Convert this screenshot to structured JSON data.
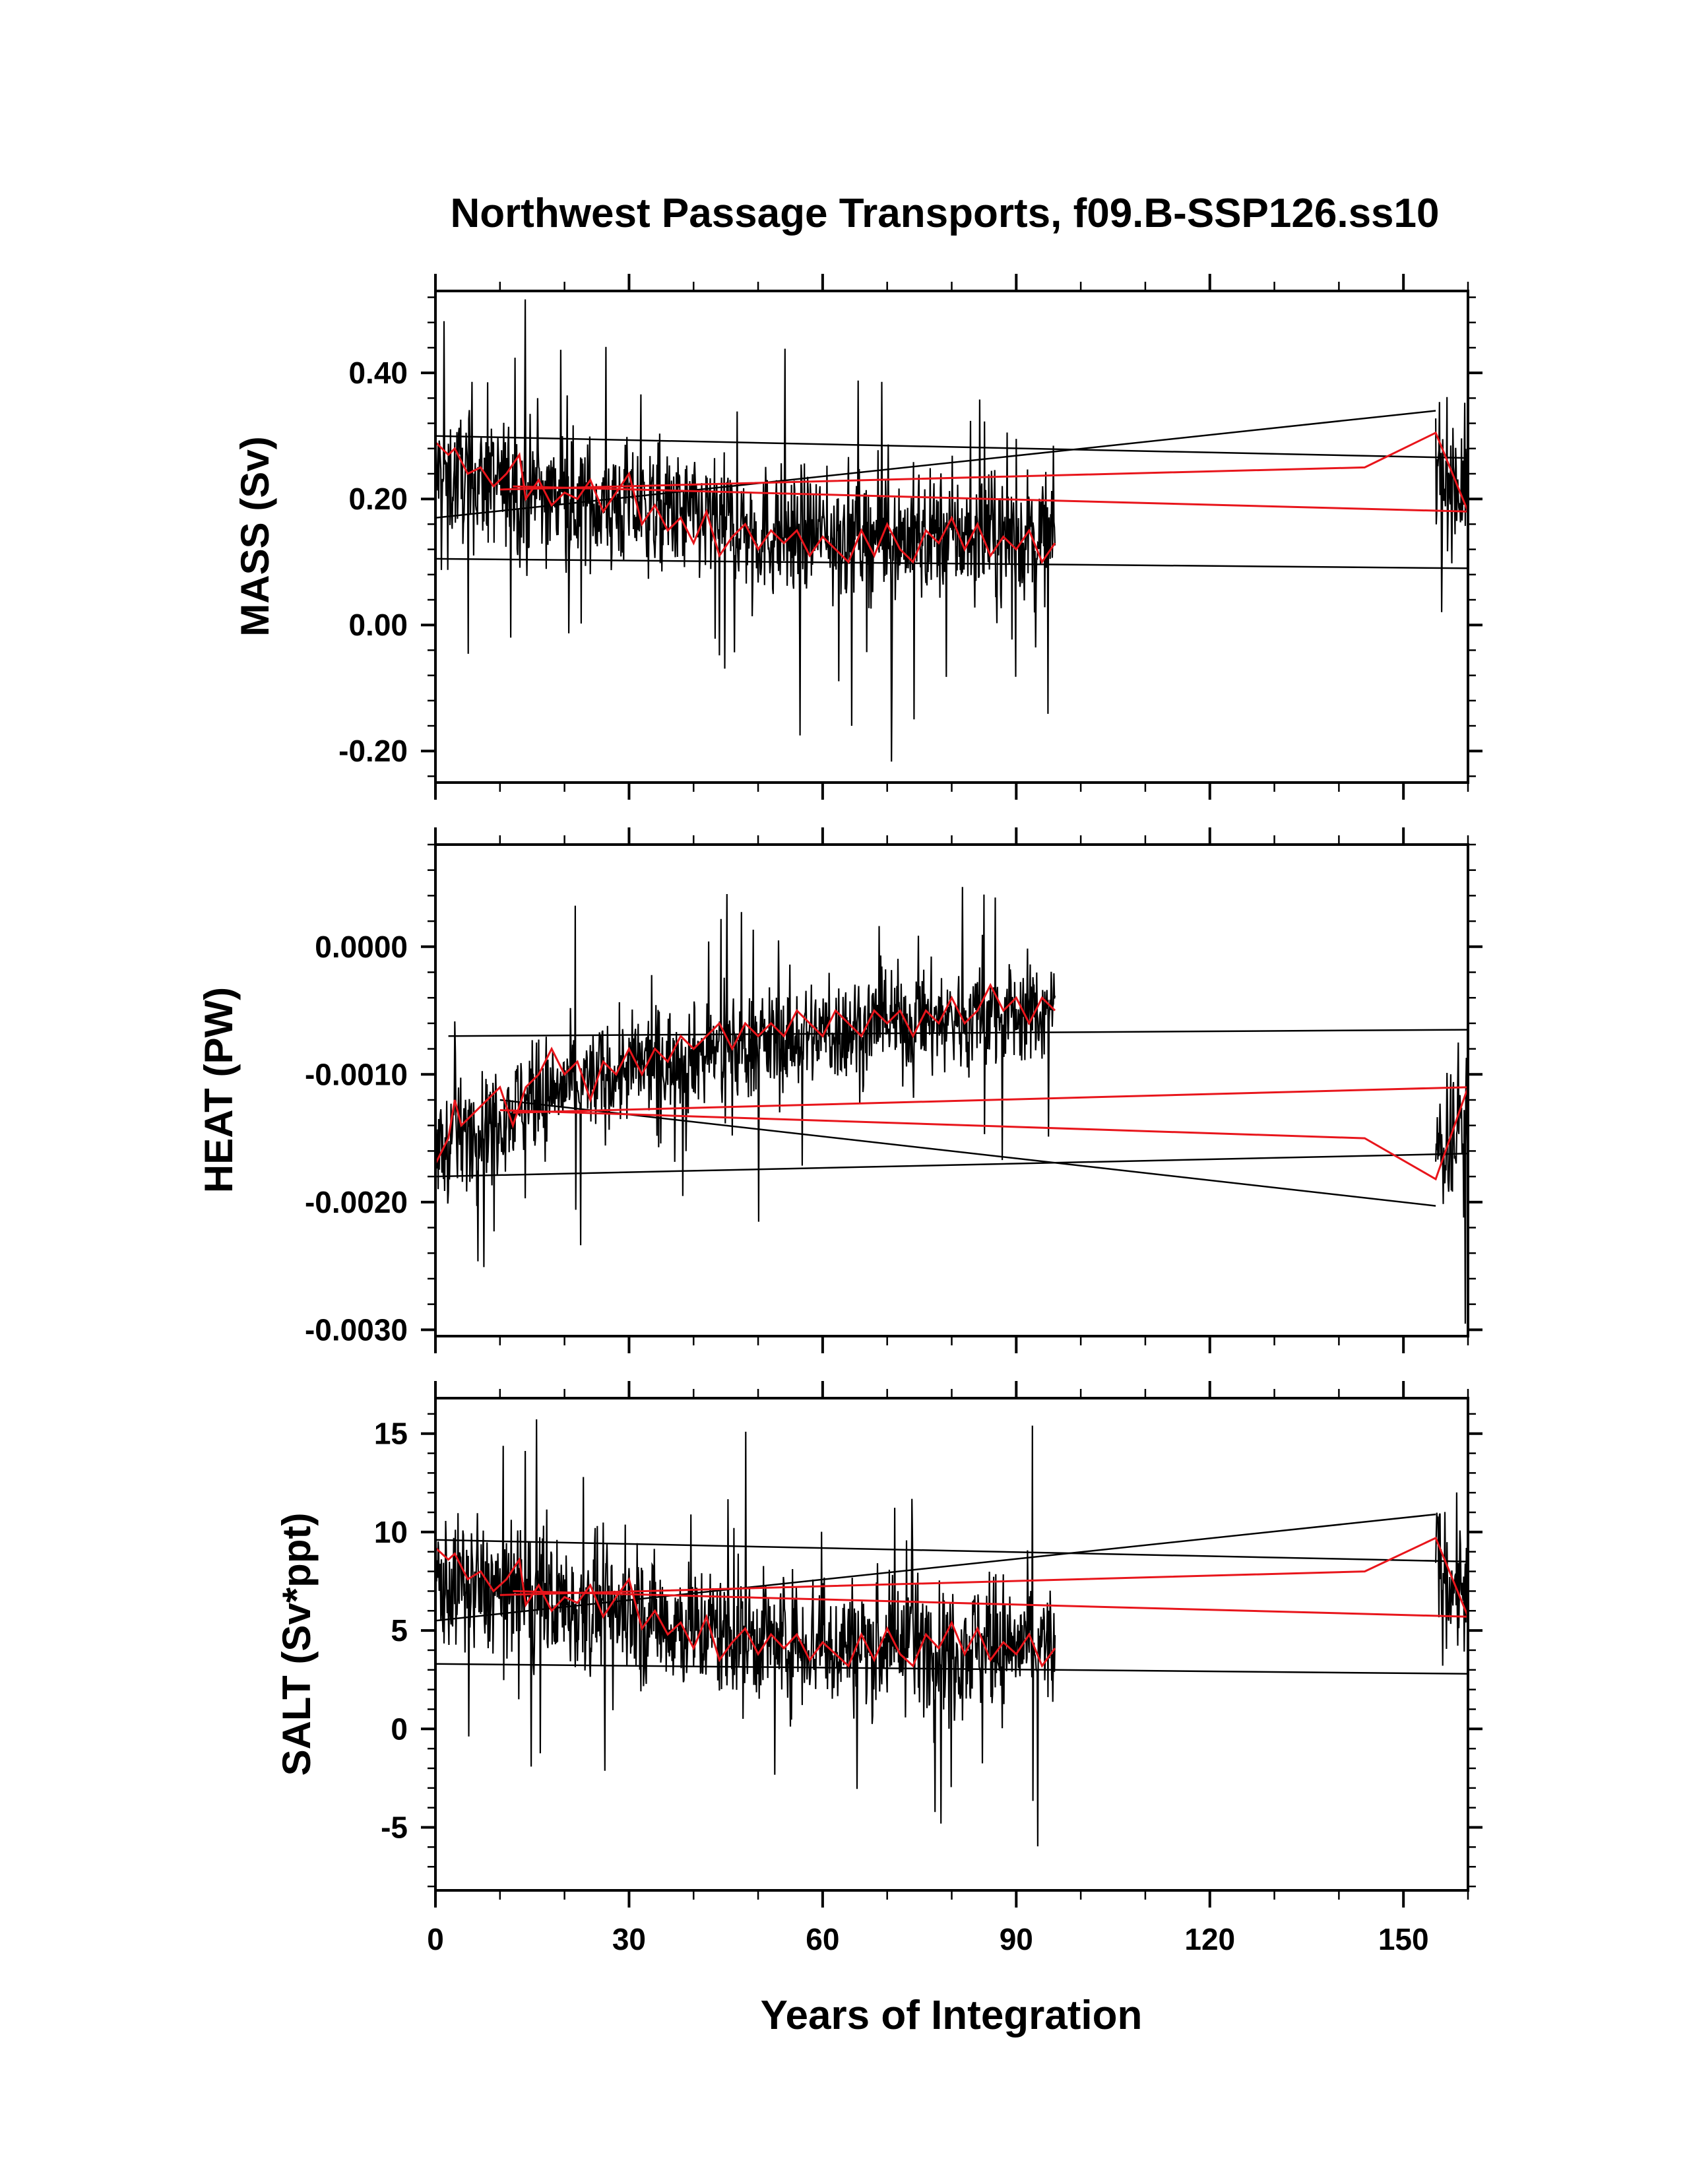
{
  "figure": {
    "title": "Northwest Passage Transports, f09.B-SSP126.ss10",
    "xlabel": "Years of Integration",
    "colors": {
      "raw": "#000000",
      "smoothed": "#e8151b",
      "axes": "#000000"
    }
  },
  "chart_data": [
    {
      "type": "line",
      "title": "Northwest Passage Transports, f09.B-SSP126.ss10",
      "ylabel": "MASS (Sv)",
      "xlabel": "",
      "xlim": [
        0,
        160
      ],
      "ylim": [
        -0.25,
        0.53
      ],
      "yticks": [
        -0.2,
        0.0,
        0.2,
        0.4
      ],
      "ytick_labels": [
        "-0.20",
        "0.00",
        "0.20",
        "0.40"
      ],
      "xticks": [
        0,
        30,
        60,
        90,
        120,
        150
      ],
      "grid": false,
      "legend": "none",
      "series": [
        {
          "role": "monthly",
          "color": "#000000",
          "segments": [
            {
              "x_start": 0,
              "x_end": 96,
              "level": [
                [
                  0,
                  0.24
                ],
                [
                  10,
                  0.22
                ],
                [
                  20,
                  0.2
                ],
                [
                  35,
                  0.18
                ],
                [
                  50,
                  0.15
                ],
                [
                  70,
                  0.14
                ],
                [
                  96,
                  0.14
                ]
              ],
              "amp": 0.11,
              "min": -0.25,
              "max": 0.53
            },
            {
              "x_start": 155,
              "x_end": 160,
              "level": [
                [
                  155,
                  0.25
                ],
                [
                  160,
                  0.22
                ]
              ],
              "amp": 0.12,
              "min": 0.02,
              "max": 0.52
            }
          ],
          "wrap_lines": [
            {
              "x": [
                0,
                160
              ],
              "y": [
                0.3,
                0.265
              ]
            },
            {
              "x": [
                0,
                155
              ],
              "y": [
                0.17,
                0.34
              ]
            },
            {
              "x": [
                0,
                160
              ],
              "y": [
                0.105,
                0.09
              ]
            }
          ]
        },
        {
          "role": "annual",
          "color": "#e8151b",
          "points": [
            [
              0,
              0.29
            ],
            [
              2,
              0.27
            ],
            [
              3,
              0.28
            ],
            [
              5,
              0.24
            ],
            [
              7,
              0.25
            ],
            [
              9,
              0.22
            ],
            [
              11,
              0.24
            ],
            [
              13,
              0.27
            ],
            [
              14,
              0.2
            ],
            [
              16,
              0.23
            ],
            [
              18,
              0.19
            ],
            [
              20,
              0.21
            ],
            [
              22,
              0.2
            ],
            [
              24,
              0.23
            ],
            [
              26,
              0.18
            ],
            [
              28,
              0.21
            ],
            [
              30,
              0.24
            ],
            [
              32,
              0.16
            ],
            [
              34,
              0.19
            ],
            [
              36,
              0.15
            ],
            [
              38,
              0.17
            ],
            [
              40,
              0.13
            ],
            [
              42,
              0.18
            ],
            [
              44,
              0.11
            ],
            [
              46,
              0.14
            ],
            [
              48,
              0.16
            ],
            [
              50,
              0.12
            ],
            [
              52,
              0.15
            ],
            [
              54,
              0.13
            ],
            [
              56,
              0.15
            ],
            [
              58,
              0.11
            ],
            [
              60,
              0.14
            ],
            [
              62,
              0.12
            ],
            [
              64,
              0.1
            ],
            [
              66,
              0.15
            ],
            [
              68,
              0.11
            ],
            [
              70,
              0.16
            ],
            [
              72,
              0.12
            ],
            [
              74,
              0.1
            ],
            [
              76,
              0.15
            ],
            [
              78,
              0.13
            ],
            [
              80,
              0.17
            ],
            [
              82,
              0.12
            ],
            [
              84,
              0.16
            ],
            [
              86,
              0.11
            ],
            [
              88,
              0.14
            ],
            [
              90,
              0.12
            ],
            [
              92,
              0.15
            ],
            [
              94,
              0.1
            ],
            [
              96,
              0.13
            ]
          ],
          "wrap_lines": [
            {
              "x": [
                10,
                144,
                155,
                160
              ],
              "y": [
                0.215,
                0.25,
                0.305,
                0.18
              ]
            },
            {
              "x": [
                12,
                160
              ],
              "y": [
                0.22,
                0.18
              ]
            }
          ]
        }
      ]
    },
    {
      "type": "line",
      "ylabel": "HEAT (PW)",
      "xlabel": "",
      "xlim": [
        0,
        160
      ],
      "ylim": [
        -0.00305,
        0.0008
      ],
      "yticks": [
        -0.003,
        -0.002,
        -0.001,
        0.0
      ],
      "ytick_labels": [
        "-0.0030",
        "-0.0020",
        "-0.0010",
        "0.0000"
      ],
      "xticks": [
        0,
        30,
        60,
        90,
        120,
        150
      ],
      "grid": false,
      "legend": "none",
      "series": [
        {
          "role": "monthly",
          "color": "#000000",
          "segments": [
            {
              "x_start": 0,
              "x_end": 96,
              "level": [
                [
                  0,
                  -0.0016
                ],
                [
                  10,
                  -0.0013
                ],
                [
                  20,
                  -0.0011
                ],
                [
                  35,
                  -0.0009
                ],
                [
                  50,
                  -0.00075
                ],
                [
                  70,
                  -0.0006
                ],
                [
                  96,
                  -0.0005
                ]
              ],
              "amp": 0.00045,
              "min": -0.00305,
              "max": 0.00078
            },
            {
              "x_start": 155,
              "x_end": 160,
              "level": [
                [
                  155,
                  -0.0016
                ],
                [
                  160,
                  -0.0013
                ]
              ],
              "amp": 0.0006,
              "min": -0.003,
              "max": -0.0004
            }
          ],
          "wrap_lines": [
            {
              "x": [
                0,
                160
              ],
              "y": [
                -0.0018,
                -0.00162
              ]
            },
            {
              "x": [
                10,
                155
              ],
              "y": [
                -0.0012,
                -0.00203
              ]
            },
            {
              "x": [
                2,
                160
              ],
              "y": [
                -0.0007,
                -0.00065
              ]
            }
          ]
        },
        {
          "role": "annual",
          "color": "#e8151b",
          "points": [
            [
              0,
              -0.0017
            ],
            [
              2,
              -0.0015
            ],
            [
              3,
              -0.0012
            ],
            [
              4,
              -0.0014
            ],
            [
              6,
              -0.0013
            ],
            [
              8,
              -0.0012
            ],
            [
              10,
              -0.0011
            ],
            [
              12,
              -0.0014
            ],
            [
              14,
              -0.0011
            ],
            [
              16,
              -0.001
            ],
            [
              18,
              -0.0008
            ],
            [
              20,
              -0.001
            ],
            [
              22,
              -0.0009
            ],
            [
              24,
              -0.0012
            ],
            [
              26,
              -0.0009
            ],
            [
              28,
              -0.001
            ],
            [
              30,
              -0.0008
            ],
            [
              32,
              -0.001
            ],
            [
              34,
              -0.0008
            ],
            [
              36,
              -0.0009
            ],
            [
              38,
              -0.0007
            ],
            [
              40,
              -0.0008
            ],
            [
              42,
              -0.0007
            ],
            [
              44,
              -0.0006
            ],
            [
              46,
              -0.0008
            ],
            [
              48,
              -0.0006
            ],
            [
              50,
              -0.0007
            ],
            [
              52,
              -0.0006
            ],
            [
              54,
              -0.0007
            ],
            [
              56,
              -0.0005
            ],
            [
              58,
              -0.0006
            ],
            [
              60,
              -0.0007
            ],
            [
              62,
              -0.0005
            ],
            [
              64,
              -0.0006
            ],
            [
              66,
              -0.0007
            ],
            [
              68,
              -0.0005
            ],
            [
              70,
              -0.0006
            ],
            [
              72,
              -0.0005
            ],
            [
              74,
              -0.0007
            ],
            [
              76,
              -0.0005
            ],
            [
              78,
              -0.0006
            ],
            [
              80,
              -0.0004
            ],
            [
              82,
              -0.0006
            ],
            [
              84,
              -0.0005
            ],
            [
              86,
              -0.0003
            ],
            [
              88,
              -0.0005
            ],
            [
              90,
              -0.0004
            ],
            [
              92,
              -0.0006
            ],
            [
              94,
              -0.0004
            ],
            [
              96,
              -0.0005
            ]
          ],
          "wrap_lines": [
            {
              "x": [
                10,
                144,
                155,
                160
              ],
              "y": [
                -0.00128,
                -0.0015,
                -0.00182,
                -0.0011
              ]
            },
            {
              "x": [
                12,
                160
              ],
              "y": [
                -0.0013,
                -0.0011
              ]
            }
          ]
        }
      ]
    },
    {
      "type": "line",
      "ylabel": "SALT (Sv*ppt)",
      "xlabel": "Years of Integration",
      "xlim": [
        0,
        160
      ],
      "ylim": [
        -8.2,
        16.8
      ],
      "yticks": [
        -5,
        0,
        5,
        10,
        15
      ],
      "ytick_labels": [
        "-5",
        "0",
        "5",
        "10",
        "15"
      ],
      "xticks": [
        0,
        30,
        60,
        90,
        120,
        150
      ],
      "xtick_labels": [
        "0",
        "30",
        "60",
        "90",
        "120",
        "150"
      ],
      "grid": false,
      "legend": "none",
      "series": [
        {
          "role": "monthly",
          "color": "#000000",
          "segments": [
            {
              "x_start": 0,
              "x_end": 96,
              "level": [
                [
                  0,
                  7.5
                ],
                [
                  10,
                  7.0
                ],
                [
                  20,
                  6.4
                ],
                [
                  35,
                  5.5
                ],
                [
                  50,
                  4.6
                ],
                [
                  70,
                  4.3
                ],
                [
                  96,
                  4.2
                ]
              ],
              "amp": 3.6,
              "min": -8.2,
              "max": 16.8
            },
            {
              "x_start": 155,
              "x_end": 160,
              "level": [
                [
                  155,
                  8.0
                ],
                [
                  160,
                  7.0
                ]
              ],
              "amp": 3.8,
              "min": 0.5,
              "max": 16.6
            }
          ],
          "wrap_lines": [
            {
              "x": [
                0,
                160
              ],
              "y": [
                9.6,
                8.5
              ]
            },
            {
              "x": [
                0,
                155
              ],
              "y": [
                5.5,
                10.9
              ]
            },
            {
              "x": [
                0,
                160
              ],
              "y": [
                3.3,
                2.8
              ]
            }
          ]
        },
        {
          "role": "annual",
          "color": "#e8151b",
          "points": [
            [
              0,
              9.2
            ],
            [
              2,
              8.6
            ],
            [
              3,
              8.9
            ],
            [
              5,
              7.6
            ],
            [
              7,
              8.0
            ],
            [
              9,
              7.0
            ],
            [
              11,
              7.6
            ],
            [
              13,
              8.6
            ],
            [
              14,
              6.3
            ],
            [
              16,
              7.3
            ],
            [
              18,
              6.0
            ],
            [
              20,
              6.7
            ],
            [
              22,
              6.4
            ],
            [
              24,
              7.3
            ],
            [
              26,
              5.7
            ],
            [
              28,
              6.7
            ],
            [
              30,
              7.6
            ],
            [
              32,
              5.1
            ],
            [
              34,
              6.0
            ],
            [
              36,
              4.8
            ],
            [
              38,
              5.4
            ],
            [
              40,
              4.1
            ],
            [
              42,
              5.7
            ],
            [
              44,
              3.5
            ],
            [
              46,
              4.4
            ],
            [
              48,
              5.1
            ],
            [
              50,
              3.8
            ],
            [
              52,
              4.8
            ],
            [
              54,
              4.1
            ],
            [
              56,
              4.8
            ],
            [
              58,
              3.5
            ],
            [
              60,
              4.4
            ],
            [
              62,
              3.8
            ],
            [
              64,
              3.2
            ],
            [
              66,
              4.8
            ],
            [
              68,
              3.5
            ],
            [
              70,
              5.1
            ],
            [
              72,
              3.8
            ],
            [
              74,
              3.2
            ],
            [
              76,
              4.8
            ],
            [
              78,
              4.1
            ],
            [
              80,
              5.4
            ],
            [
              82,
              3.8
            ],
            [
              84,
              5.1
            ],
            [
              86,
              3.5
            ],
            [
              88,
              4.4
            ],
            [
              90,
              3.8
            ],
            [
              92,
              4.8
            ],
            [
              94,
              3.2
            ],
            [
              96,
              4.1
            ]
          ],
          "wrap_lines": [
            {
              "x": [
                10,
                144,
                155,
                160
              ],
              "y": [
                6.8,
                8.0,
                9.7,
                5.7
              ]
            },
            {
              "x": [
                12,
                160
              ],
              "y": [
                7.0,
                5.7
              ]
            }
          ]
        }
      ]
    }
  ]
}
